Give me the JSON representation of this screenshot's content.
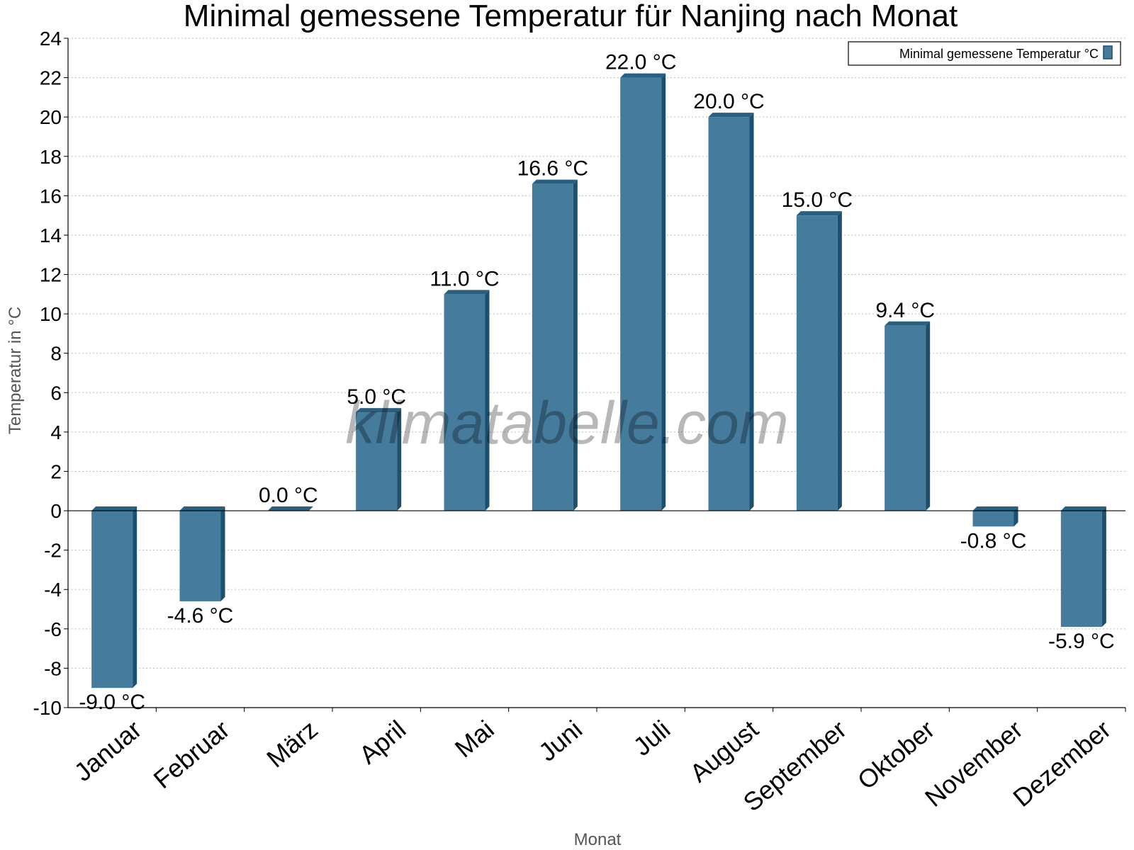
{
  "chart_data": {
    "type": "bar",
    "title": "Minimal gemessene Temperatur für Nanjing nach Monat",
    "xlabel": "Monat",
    "ylabel": "Temperatur in °C",
    "ylim": [
      -10,
      24
    ],
    "yticks": [
      24,
      22,
      20,
      18,
      16,
      14,
      12,
      10,
      8,
      6,
      4,
      2,
      0,
      -2,
      -4,
      -6,
      -8,
      -10
    ],
    "grid": true,
    "legend_position": "top-right",
    "categories": [
      "Januar",
      "Februar",
      "März",
      "April",
      "Mai",
      "Juni",
      "Juli",
      "August",
      "September",
      "Oktober",
      "November",
      "Dezember"
    ],
    "series": [
      {
        "name": "Minimal gemessene Temperatur °C",
        "values": [
          -9.0,
          -4.6,
          0.0,
          5.0,
          11.0,
          16.6,
          22.0,
          20.0,
          15.0,
          9.4,
          -0.8,
          -5.9
        ],
        "labels": [
          "-9.0 °C",
          "-4.6 °C",
          "0.0 °C",
          "5.0 °C",
          "11.0 °C",
          "16.6 °C",
          "22.0 °C",
          "20.0 °C",
          "15.0 °C",
          "9.4 °C",
          "-0.8 °C",
          "-5.9 °C"
        ]
      }
    ],
    "colors": {
      "bar": "#457b9d",
      "bar_side": "#1d4f6e",
      "bar_top": "#2a5f80"
    }
  },
  "watermark": "klimatabelle.com"
}
